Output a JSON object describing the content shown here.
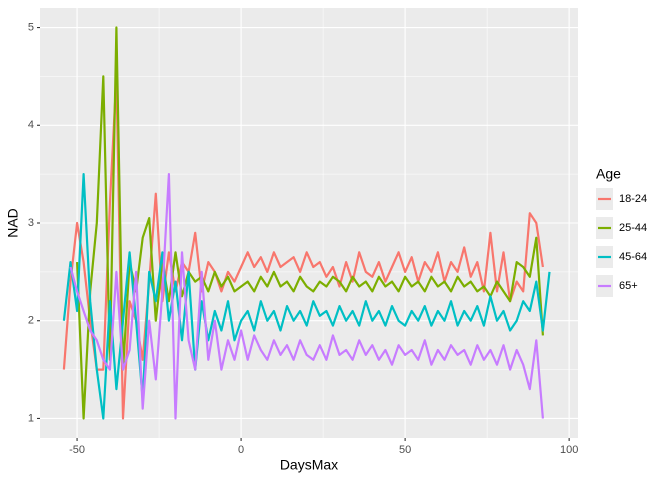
{
  "chart_data": {
    "type": "line",
    "x_label": "DaysMax",
    "y_label": "NAD",
    "legend_title": "Age",
    "legend_position": "right",
    "grid": true,
    "xlim": [
      -61.3,
      102.7
    ],
    "ylim": [
      0.8,
      5.2
    ],
    "xticks": [
      -50,
      0,
      50,
      100
    ],
    "yticks": [
      1,
      2,
      3,
      4,
      5
    ],
    "x": [
      -54,
      -52,
      -50,
      -48,
      -46,
      -44,
      -42,
      -40,
      -38,
      -36,
      -34,
      -32,
      -30,
      -28,
      -26,
      -24,
      -22,
      -20,
      -18,
      -16,
      -14,
      -12,
      -10,
      -8,
      -6,
      -4,
      -2,
      0,
      2,
      4,
      6,
      8,
      10,
      12,
      14,
      16,
      18,
      20,
      22,
      24,
      26,
      28,
      30,
      32,
      34,
      36,
      38,
      40,
      42,
      44,
      46,
      48,
      50,
      52,
      54,
      56,
      58,
      60,
      62,
      64,
      66,
      68,
      70,
      72,
      74,
      76,
      78,
      80,
      82,
      84,
      86,
      88,
      90,
      92,
      94
    ],
    "series": [
      {
        "name": "18-24",
        "color": "#F8766D",
        "values": [
          1.5,
          2.4,
          3.0,
          2.6,
          2.0,
          1.5,
          1.5,
          3.2,
          4.5,
          1.0,
          2.2,
          2.0,
          1.6,
          2.4,
          3.3,
          2.2,
          2.7,
          2.3,
          2.6,
          2.5,
          2.9,
          2.3,
          2.6,
          2.5,
          2.3,
          2.5,
          2.4,
          2.55,
          2.7,
          2.55,
          2.65,
          2.5,
          2.7,
          2.55,
          2.6,
          2.65,
          2.5,
          2.7,
          2.55,
          2.6,
          2.45,
          2.55,
          2.35,
          2.6,
          2.4,
          2.7,
          2.5,
          2.45,
          2.6,
          2.4,
          2.55,
          2.7,
          2.5,
          2.65,
          2.4,
          2.6,
          2.5,
          2.7,
          2.4,
          2.6,
          2.5,
          2.75,
          2.45,
          2.6,
          2.3,
          2.9,
          2.3,
          2.7,
          2.2,
          2.4,
          2.3,
          3.1,
          3.0,
          2.55,
          null
        ]
      },
      {
        "name": "25-44",
        "color": "#7CAE00",
        "values": [
          null,
          null,
          2.6,
          1.0,
          2.3,
          3.0,
          4.5,
          1.6,
          5.0,
          1.5,
          2.6,
          2.3,
          2.85,
          3.05,
          2.0,
          2.6,
          2.2,
          2.7,
          2.25,
          2.5,
          2.4,
          2.45,
          2.3,
          2.5,
          2.35,
          2.45,
          2.3,
          2.35,
          2.4,
          2.3,
          2.45,
          2.35,
          2.5,
          2.35,
          2.4,
          2.3,
          2.45,
          2.35,
          2.3,
          2.4,
          2.35,
          2.45,
          2.4,
          2.3,
          2.45,
          2.35,
          2.4,
          2.3,
          2.45,
          2.35,
          2.4,
          2.3,
          2.45,
          2.35,
          2.4,
          2.3,
          2.45,
          2.35,
          2.4,
          2.3,
          2.45,
          2.35,
          2.4,
          2.3,
          2.35,
          2.25,
          2.4,
          2.3,
          2.2,
          2.6,
          2.55,
          2.45,
          2.85,
          1.85,
          null
        ]
      },
      {
        "name": "45-64",
        "color": "#00BFC4",
        "values": [
          2.0,
          2.6,
          2.1,
          3.5,
          2.2,
          1.5,
          1.0,
          2.2,
          1.3,
          2.0,
          2.7,
          2.0,
          1.2,
          2.5,
          2.2,
          2.7,
          2.0,
          2.4,
          1.8,
          2.5,
          1.5,
          2.2,
          1.8,
          2.1,
          1.9,
          2.2,
          1.8,
          2.0,
          2.1,
          1.9,
          2.2,
          2.0,
          2.1,
          1.9,
          2.15,
          2.0,
          2.1,
          1.95,
          2.2,
          2.05,
          2.1,
          1.95,
          2.15,
          2.0,
          2.1,
          1.95,
          2.2,
          2.0,
          2.1,
          1.95,
          2.15,
          2.0,
          1.95,
          2.1,
          2.0,
          2.15,
          1.95,
          2.1,
          2.0,
          2.2,
          1.95,
          2.1,
          2.0,
          2.15,
          1.95,
          2.25,
          2.0,
          2.1,
          1.9,
          2.0,
          2.2,
          2.1,
          2.4,
          1.9,
          2.5
        ]
      },
      {
        "name": "65+",
        "color": "#C77CFF",
        "values": [
          null,
          2.55,
          2.3,
          2.1,
          1.9,
          1.8,
          1.6,
          1.5,
          2.5,
          1.5,
          1.7,
          2.5,
          1.1,
          2.0,
          1.4,
          2.3,
          3.5,
          1.0,
          2.7,
          1.8,
          1.5,
          2.5,
          1.6,
          2.0,
          1.5,
          1.8,
          1.6,
          1.9,
          1.6,
          1.85,
          1.7,
          1.6,
          1.8,
          1.65,
          1.75,
          1.6,
          1.8,
          1.65,
          1.6,
          1.75,
          1.6,
          1.85,
          1.65,
          1.7,
          1.6,
          1.8,
          1.65,
          1.75,
          1.6,
          1.7,
          1.55,
          1.75,
          1.65,
          1.7,
          1.6,
          1.8,
          1.55,
          1.7,
          1.6,
          1.75,
          1.65,
          1.7,
          1.55,
          1.75,
          1.6,
          1.7,
          1.55,
          1.75,
          1.5,
          1.7,
          1.55,
          1.3,
          1.8,
          1.0,
          null
        ]
      }
    ]
  }
}
